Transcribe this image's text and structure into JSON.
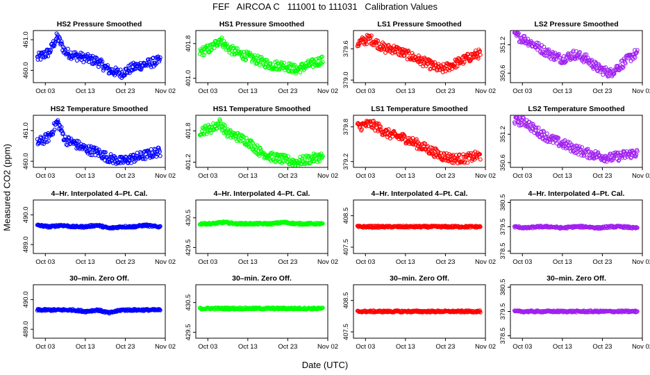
{
  "title": "FEF   AIRCOA C   111001 to 111031   Calibration Values",
  "ylabel": "Measured CO2 (ppm)",
  "xlabel": "Date (UTC)",
  "x_ticks": [
    "Oct 03",
    "Oct 13",
    "Oct 23",
    "Nov 02"
  ],
  "x_range": [
    "2011-09-30",
    "2011-11-02"
  ],
  "colors": {
    "HS2": "#0000ff",
    "HS1": "#00ff00",
    "LS1": "#ff0000",
    "LS2": "#a020f0"
  },
  "chart_data": [
    {
      "type": "scatter",
      "title": "HS2 Pressure Smoothed",
      "color": "#0000ff",
      "yticks": [
        "460.0",
        "461.0"
      ],
      "ytick_values": [
        460.0,
        461.0
      ],
      "ylim": [
        459.6,
        461.3
      ],
      "series": [
        {
          "x": [
            "2011-10-01",
            "2011-10-04",
            "2011-10-06",
            "2011-10-08",
            "2011-10-10",
            "2011-10-13",
            "2011-10-16",
            "2011-10-19",
            "2011-10-22",
            "2011-10-25",
            "2011-10-28",
            "2011-10-31"
          ],
          "y": [
            460.4,
            460.6,
            461.1,
            460.6,
            460.5,
            460.4,
            460.3,
            460.0,
            459.9,
            460.1,
            460.2,
            460.3
          ]
        }
      ]
    },
    {
      "type": "scatter",
      "title": "HS1 Pressure Smoothed",
      "color": "#00ff00",
      "yticks": [
        "401.0",
        "401.8"
      ],
      "ytick_values": [
        401.0,
        401.8
      ],
      "ylim": [
        400.9,
        402.1
      ],
      "series": [
        {
          "x": [
            "2011-10-01",
            "2011-10-04",
            "2011-10-06",
            "2011-10-08",
            "2011-10-10",
            "2011-10-13",
            "2011-10-16",
            "2011-10-19",
            "2011-10-22",
            "2011-10-25",
            "2011-10-28",
            "2011-10-31"
          ],
          "y": [
            401.6,
            401.7,
            401.9,
            401.7,
            401.6,
            401.5,
            401.4,
            401.3,
            401.3,
            401.2,
            401.3,
            401.4
          ]
        }
      ]
    },
    {
      "type": "scatter",
      "title": "LS1 Pressure Smoothed",
      "color": "#ff0000",
      "yticks": [
        "379.0",
        "379.6"
      ],
      "ytick_values": [
        379.0,
        379.6
      ],
      "ylim": [
        378.95,
        379.95
      ],
      "series": [
        {
          "x": [
            "2011-10-01",
            "2011-10-04",
            "2011-10-06",
            "2011-10-08",
            "2011-10-10",
            "2011-10-13",
            "2011-10-16",
            "2011-10-19",
            "2011-10-22",
            "2011-10-25",
            "2011-10-28",
            "2011-10-31"
          ],
          "y": [
            379.7,
            379.8,
            379.7,
            379.6,
            379.6,
            379.5,
            379.4,
            379.3,
            379.2,
            379.3,
            379.4,
            379.5
          ]
        }
      ]
    },
    {
      "type": "scatter",
      "title": "LS2 Pressure Smoothed",
      "color": "#a020f0",
      "yticks": [
        "350.6",
        "351.2"
      ],
      "ytick_values": [
        350.6,
        351.2
      ],
      "ylim": [
        350.4,
        351.5
      ],
      "series": [
        {
          "x": [
            "2011-10-01",
            "2011-10-04",
            "2011-10-06",
            "2011-10-08",
            "2011-10-10",
            "2011-10-13",
            "2011-10-16",
            "2011-10-19",
            "2011-10-22",
            "2011-10-25",
            "2011-10-28",
            "2011-10-31"
          ],
          "y": [
            351.4,
            351.3,
            351.2,
            351.1,
            351.0,
            350.9,
            351.0,
            350.9,
            350.7,
            350.6,
            350.8,
            351.0
          ]
        }
      ]
    },
    {
      "type": "scatter",
      "title": "HS2 Temperature Smoothed",
      "color": "#0000ff",
      "yticks": [
        "460.0",
        "461.0"
      ],
      "ytick_values": [
        460.0,
        461.0
      ],
      "ylim": [
        459.8,
        461.5
      ],
      "series": [
        {
          "x": [
            "2011-10-01",
            "2011-10-04",
            "2011-10-06",
            "2011-10-08",
            "2011-10-10",
            "2011-10-13",
            "2011-10-16",
            "2011-10-19",
            "2011-10-22",
            "2011-10-25",
            "2011-10-28",
            "2011-10-31"
          ],
          "y": [
            460.6,
            460.8,
            461.3,
            460.7,
            460.6,
            460.4,
            460.3,
            460.1,
            460.0,
            460.1,
            460.2,
            460.3
          ]
        }
      ]
    },
    {
      "type": "scatter",
      "title": "HS1 Temperature Smoothed",
      "color": "#00ff00",
      "yticks": [
        "401.2",
        "401.8"
      ],
      "ytick_values": [
        401.2,
        401.8
      ],
      "ylim": [
        401.1,
        402.1
      ],
      "series": [
        {
          "x": [
            "2011-10-01",
            "2011-10-04",
            "2011-10-06",
            "2011-10-08",
            "2011-10-10",
            "2011-10-13",
            "2011-10-16",
            "2011-10-19",
            "2011-10-22",
            "2011-10-25",
            "2011-10-28",
            "2011-10-31"
          ],
          "y": [
            401.8,
            401.85,
            401.95,
            401.75,
            401.7,
            401.6,
            401.4,
            401.3,
            401.25,
            401.2,
            401.25,
            401.3
          ]
        }
      ]
    },
    {
      "type": "scatter",
      "title": "LS1 Temperature Smoothed",
      "color": "#ff0000",
      "yticks": [
        "379.2",
        "379.8"
      ],
      "ytick_values": [
        379.2,
        379.8
      ],
      "ylim": [
        379.1,
        380.0
      ],
      "series": [
        {
          "x": [
            "2011-10-01",
            "2011-10-04",
            "2011-10-06",
            "2011-10-08",
            "2011-10-10",
            "2011-10-13",
            "2011-10-16",
            "2011-10-19",
            "2011-10-22",
            "2011-10-25",
            "2011-10-28",
            "2011-10-31"
          ],
          "y": [
            379.8,
            379.85,
            379.8,
            379.7,
            379.65,
            379.6,
            379.5,
            379.4,
            379.3,
            379.25,
            379.25,
            379.3
          ]
        }
      ]
    },
    {
      "type": "scatter",
      "title": "LS2 Temperature Smoothed",
      "color": "#a020f0",
      "yticks": [
        "350.6",
        "351.2"
      ],
      "ytick_values": [
        350.6,
        351.2
      ],
      "ylim": [
        350.5,
        351.6
      ],
      "series": [
        {
          "x": [
            "2011-10-01",
            "2011-10-04",
            "2011-10-06",
            "2011-10-08",
            "2011-10-10",
            "2011-10-13",
            "2011-10-16",
            "2011-10-19",
            "2011-10-22",
            "2011-10-25",
            "2011-10-28",
            "2011-10-31"
          ],
          "y": [
            351.5,
            351.45,
            351.3,
            351.2,
            351.1,
            351.0,
            350.9,
            350.8,
            350.75,
            350.7,
            350.75,
            350.8
          ]
        }
      ]
    },
    {
      "type": "scatter",
      "title": "4–Hr. Interpolated 4–Pt. Cal.",
      "color": "#0000ff",
      "yticks": [
        "489.0",
        "490.0"
      ],
      "ytick_values": [
        489.0,
        490.0
      ],
      "ylim": [
        488.7,
        490.5
      ],
      "series": [
        {
          "x": [
            "2011-10-01",
            "2011-10-04",
            "2011-10-07",
            "2011-10-10",
            "2011-10-13",
            "2011-10-16",
            "2011-10-19",
            "2011-10-22",
            "2011-10-25",
            "2011-10-28",
            "2011-10-31"
          ],
          "y": [
            489.65,
            489.6,
            489.65,
            489.6,
            489.6,
            489.65,
            489.55,
            489.6,
            489.6,
            489.65,
            489.6
          ]
        }
      ]
    },
    {
      "type": "scatter",
      "title": "4–Hr. Interpolated 4–Pt. Cal.",
      "color": "#00ff00",
      "yticks": [
        "429.5",
        "430.5"
      ],
      "ytick_values": [
        429.5,
        430.5
      ],
      "ylim": [
        429.3,
        431.1
      ],
      "series": [
        {
          "x": [
            "2011-10-01",
            "2011-10-04",
            "2011-10-07",
            "2011-10-10",
            "2011-10-13",
            "2011-10-16",
            "2011-10-19",
            "2011-10-22",
            "2011-10-25",
            "2011-10-28",
            "2011-10-31"
          ],
          "y": [
            430.3,
            430.3,
            430.35,
            430.3,
            430.3,
            430.3,
            430.3,
            430.35,
            430.3,
            430.3,
            430.3
          ]
        }
      ]
    },
    {
      "type": "scatter",
      "title": "4–Hr. Interpolated 4–Pt. Cal.",
      "color": "#ff0000",
      "yticks": [
        "407.5",
        "408.5"
      ],
      "ytick_values": [
        407.5,
        408.5
      ],
      "ylim": [
        407.3,
        409.0
      ],
      "series": [
        {
          "x": [
            "2011-10-01",
            "2011-10-04",
            "2011-10-07",
            "2011-10-10",
            "2011-10-13",
            "2011-10-16",
            "2011-10-19",
            "2011-10-22",
            "2011-10-25",
            "2011-10-28",
            "2011-10-31"
          ],
          "y": [
            408.15,
            408.15,
            408.15,
            408.15,
            408.15,
            408.15,
            408.15,
            408.15,
            408.15,
            408.15,
            408.15
          ]
        }
      ]
    },
    {
      "type": "scatter",
      "title": "4–Hr. Interpolated 4–Pt. Cal.",
      "color": "#a020f0",
      "yticks": [
        "378.5",
        "379.5",
        "380.5"
      ],
      "ytick_values": [
        378.5,
        379.5,
        380.5
      ],
      "ylim": [
        378.4,
        380.6
      ],
      "series": [
        {
          "x": [
            "2011-10-01",
            "2011-10-04",
            "2011-10-07",
            "2011-10-10",
            "2011-10-13",
            "2011-10-16",
            "2011-10-19",
            "2011-10-22",
            "2011-10-25",
            "2011-10-28",
            "2011-10-31"
          ],
          "y": [
            379.5,
            379.45,
            379.5,
            379.5,
            379.45,
            379.5,
            379.5,
            379.45,
            379.5,
            379.5,
            379.45
          ]
        }
      ]
    },
    {
      "type": "scatter",
      "title": "30–min. Zero Off.",
      "color": "#0000ff",
      "yticks": [
        "489.0",
        "490.0"
      ],
      "ytick_values": [
        489.0,
        490.0
      ],
      "ylim": [
        488.7,
        490.5
      ],
      "series": [
        {
          "x": [
            "2011-10-01",
            "2011-10-04",
            "2011-10-07",
            "2011-10-10",
            "2011-10-13",
            "2011-10-16",
            "2011-10-19",
            "2011-10-22",
            "2011-10-25",
            "2011-10-28",
            "2011-10-31"
          ],
          "y": [
            489.65,
            489.65,
            489.65,
            489.65,
            489.6,
            489.65,
            489.55,
            489.65,
            489.65,
            489.65,
            489.65
          ]
        }
      ]
    },
    {
      "type": "scatter",
      "title": "30–min. Zero Off.",
      "color": "#00ff00",
      "yticks": [
        "429.5",
        "430.5"
      ],
      "ytick_values": [
        429.5,
        430.5
      ],
      "ylim": [
        429.3,
        431.1
      ],
      "series": [
        {
          "x": [
            "2011-10-01",
            "2011-10-04",
            "2011-10-07",
            "2011-10-10",
            "2011-10-13",
            "2011-10-16",
            "2011-10-19",
            "2011-10-22",
            "2011-10-25",
            "2011-10-28",
            "2011-10-31"
          ],
          "y": [
            430.3,
            430.3,
            430.3,
            430.3,
            430.3,
            430.3,
            430.3,
            430.3,
            430.3,
            430.3,
            430.3
          ]
        }
      ]
    },
    {
      "type": "scatter",
      "title": "30–min. Zero Off.",
      "color": "#ff0000",
      "yticks": [
        "407.5",
        "408.5"
      ],
      "ytick_values": [
        407.5,
        408.5
      ],
      "ylim": [
        407.3,
        409.0
      ],
      "series": [
        {
          "x": [
            "2011-10-01",
            "2011-10-04",
            "2011-10-07",
            "2011-10-10",
            "2011-10-13",
            "2011-10-16",
            "2011-10-19",
            "2011-10-22",
            "2011-10-25",
            "2011-10-28",
            "2011-10-31"
          ],
          "y": [
            408.15,
            408.15,
            408.15,
            408.15,
            408.15,
            408.15,
            408.15,
            408.15,
            408.15,
            408.15,
            408.15
          ]
        }
      ]
    },
    {
      "type": "scatter",
      "title": "30–min. Zero Off.",
      "color": "#a020f0",
      "yticks": [
        "378.5",
        "379.5",
        "380.5"
      ],
      "ytick_values": [
        378.5,
        379.5,
        380.5
      ],
      "ylim": [
        378.4,
        380.6
      ],
      "series": [
        {
          "x": [
            "2011-10-01",
            "2011-10-04",
            "2011-10-07",
            "2011-10-10",
            "2011-10-13",
            "2011-10-16",
            "2011-10-19",
            "2011-10-22",
            "2011-10-25",
            "2011-10-28",
            "2011-10-31"
          ],
          "y": [
            379.5,
            379.5,
            379.5,
            379.5,
            379.5,
            379.5,
            379.5,
            379.5,
            379.5,
            379.5,
            379.5
          ]
        }
      ]
    }
  ]
}
